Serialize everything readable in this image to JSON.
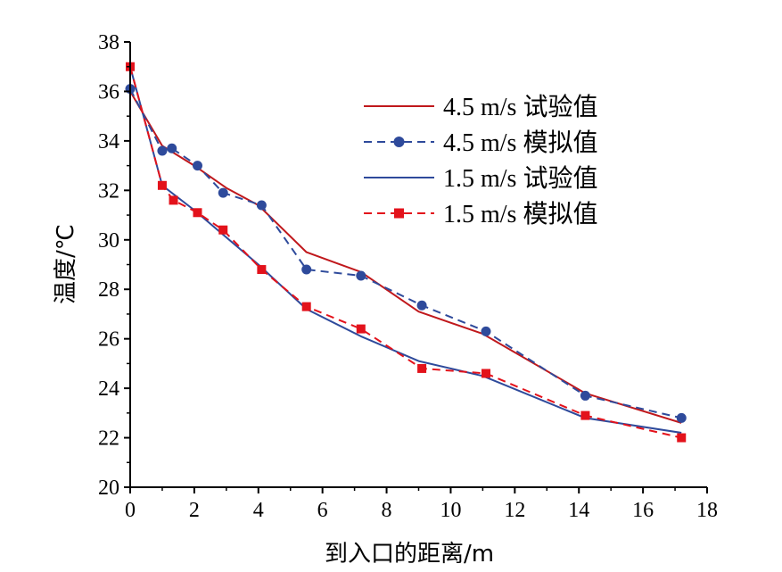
{
  "chart_data": {
    "type": "line",
    "xlabel": "到入口的距离/m",
    "ylabel": "温度/℃",
    "xlim": [
      0,
      18
    ],
    "ylim": [
      20,
      38
    ],
    "xticks": [
      0,
      2,
      4,
      6,
      8,
      10,
      12,
      14,
      16,
      18
    ],
    "yticks": [
      20,
      22,
      24,
      26,
      28,
      30,
      32,
      34,
      36,
      38
    ],
    "grid": false,
    "legend_position": "top-right",
    "series": [
      {
        "name": "4.5 m/s 试验值",
        "style": "solid",
        "color": "#c0181c",
        "marker": "none",
        "x": [
          0,
          1,
          2,
          3,
          4,
          5.5,
          7.2,
          9,
          11,
          14.2,
          17.2
        ],
        "y": [
          36.0,
          33.8,
          33.0,
          32.1,
          31.4,
          29.5,
          28.7,
          27.1,
          26.2,
          23.8,
          22.6
        ]
      },
      {
        "name": "4.5 m/s 模拟值",
        "style": "dashed",
        "color": "#2e4a9b",
        "marker": "circle",
        "x": [
          0,
          1.0,
          1.3,
          2.1,
          2.9,
          4.1,
          5.5,
          7.2,
          9.1,
          11.1,
          14.2,
          17.2
        ],
        "y": [
          36.1,
          33.6,
          33.7,
          33.0,
          31.9,
          31.4,
          28.8,
          28.55,
          27.35,
          26.3,
          23.7,
          22.8
        ]
      },
      {
        "name": "1.5 m/s 试验值",
        "style": "solid",
        "color": "#2e4a9b",
        "marker": "none",
        "x": [
          0,
          1,
          2,
          3,
          4,
          5.5,
          7.2,
          9,
          11,
          14.2,
          17.2
        ],
        "y": [
          37.0,
          32.2,
          31.2,
          30.1,
          29.0,
          27.2,
          26.1,
          25.1,
          24.5,
          22.8,
          22.2
        ]
      },
      {
        "name": "1.5 m/s 模拟值",
        "style": "dashed",
        "color": "#e3121b",
        "marker": "square",
        "x": [
          0,
          1.0,
          1.35,
          2.1,
          2.9,
          4.1,
          5.5,
          7.2,
          9.1,
          11.1,
          14.2,
          17.2
        ],
        "y": [
          37.0,
          32.2,
          31.6,
          31.1,
          30.4,
          28.8,
          27.3,
          26.4,
          24.8,
          24.6,
          22.9,
          22.0
        ]
      }
    ]
  }
}
